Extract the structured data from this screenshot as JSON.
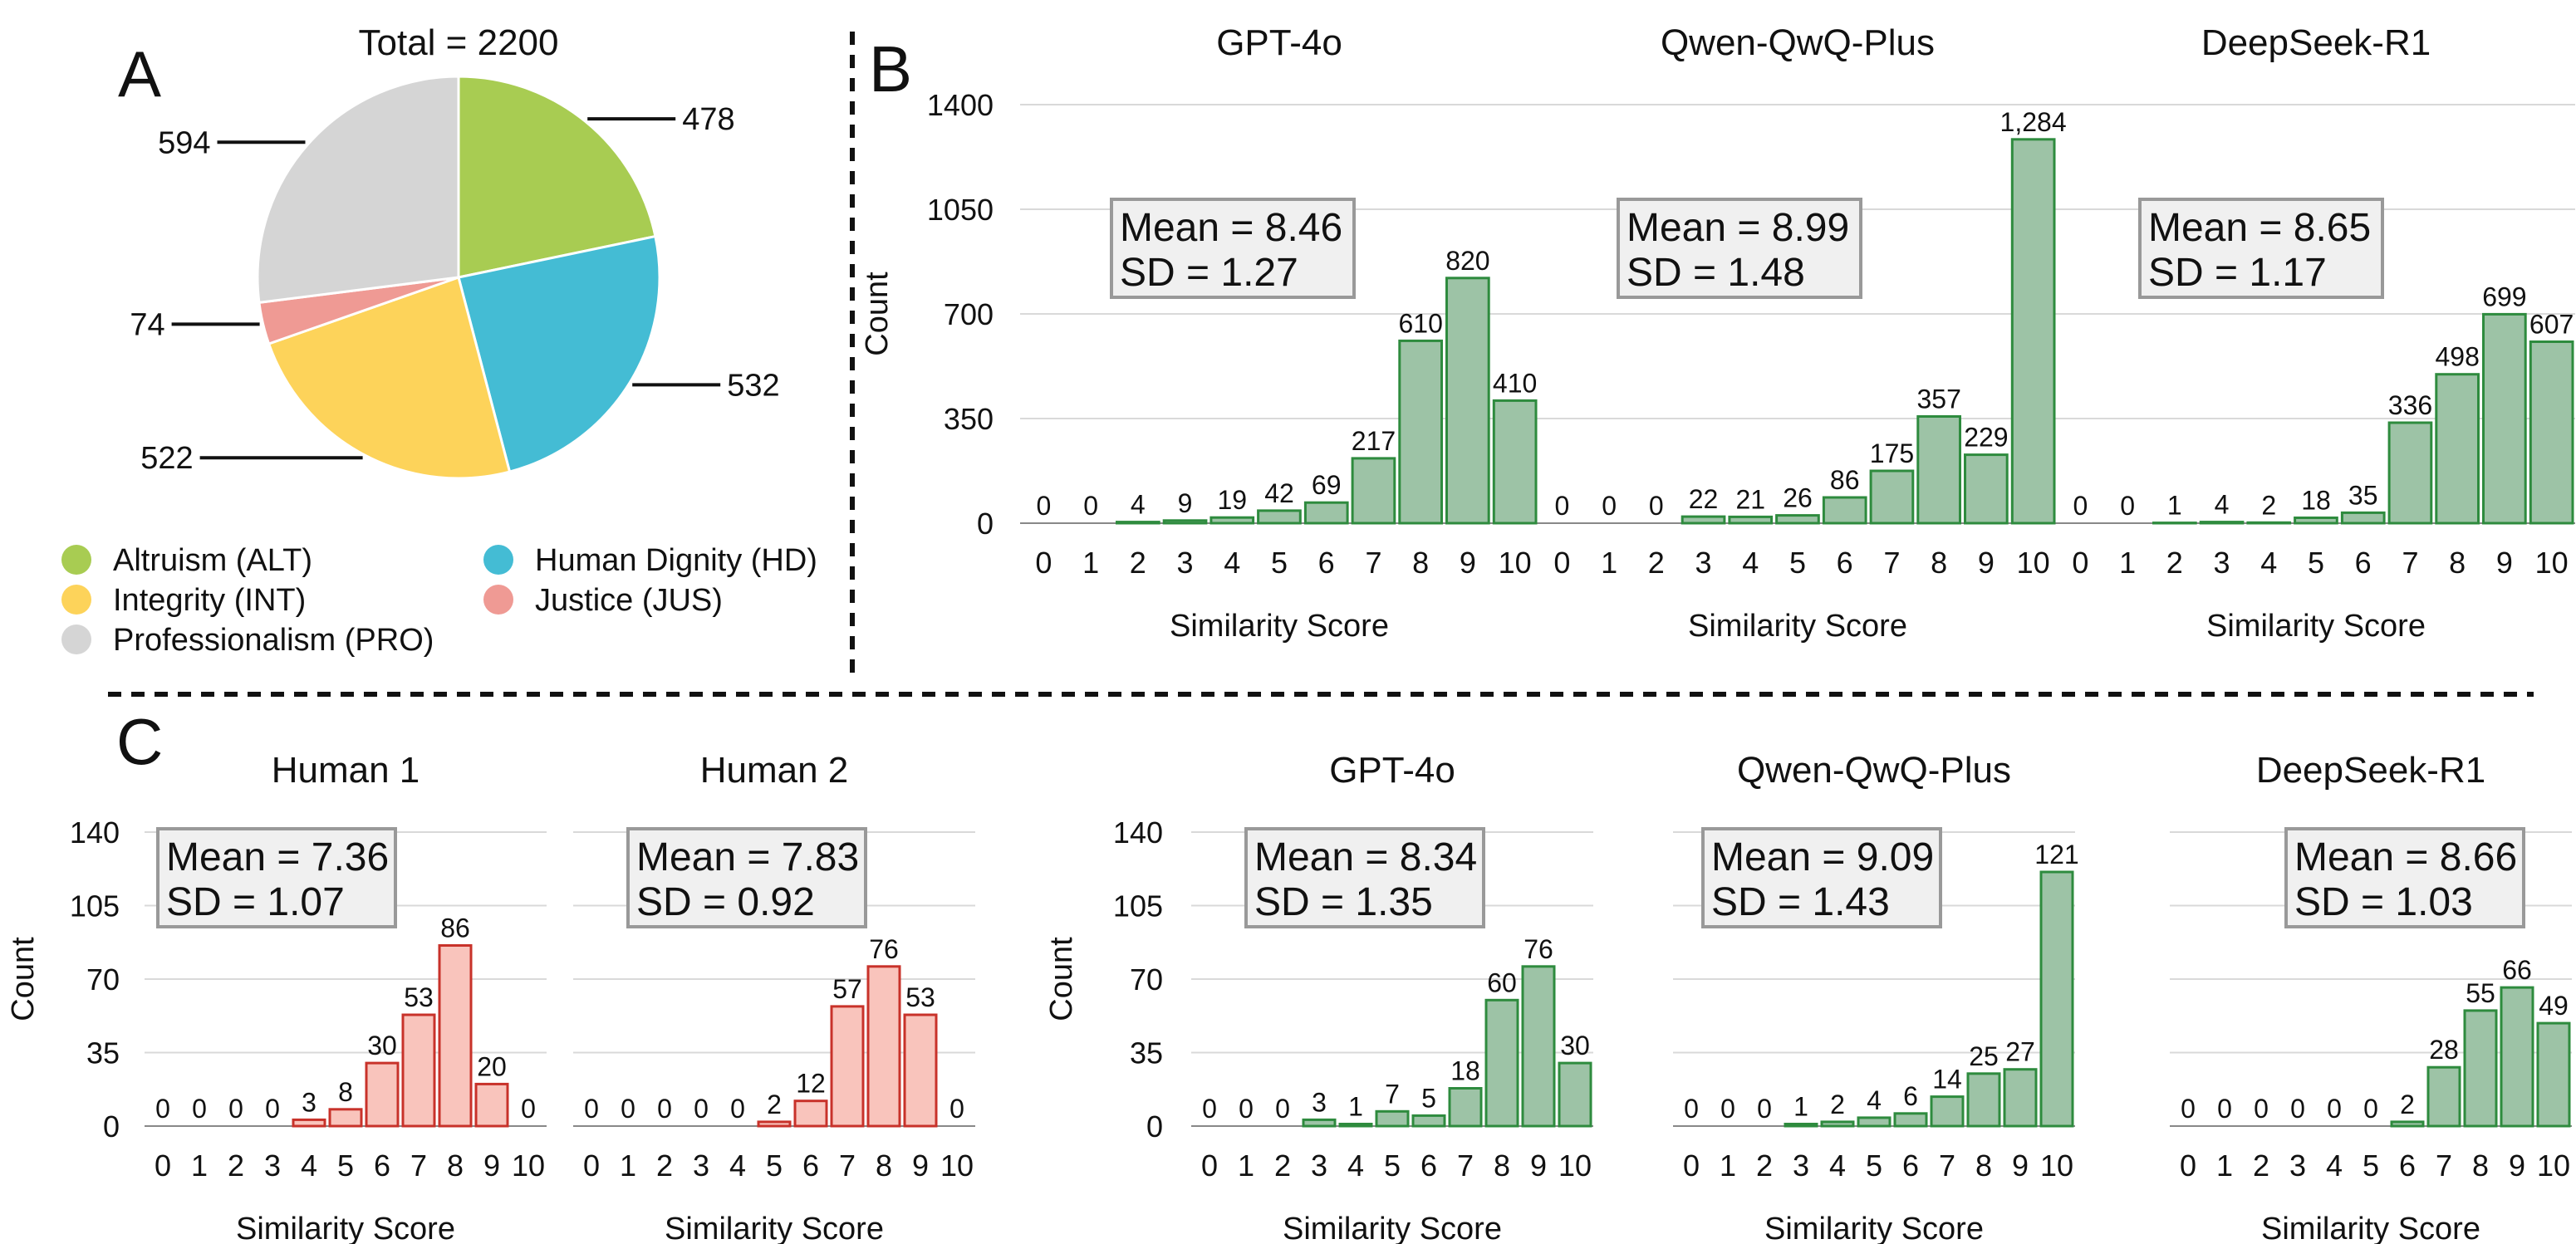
{
  "colors": {
    "green_fill": "#9dc3a6",
    "green_edge": "#2e8b3e",
    "red_fill": "#f9c4bc",
    "red_edge": "#c8322a",
    "stats_box_fill": "#f0f0f0",
    "stats_box_edge": "#999999"
  },
  "panels": {
    "A": "A",
    "B": "B",
    "C": "C"
  },
  "chart_data": [
    {
      "id": "A",
      "type": "pie",
      "title": "Total = 2200",
      "slices": [
        {
          "name": "Altruism (ALT)",
          "value": 478,
          "label": "478",
          "color": "#a8cc52"
        },
        {
          "name": "Human Dignity (HD)",
          "value": 532,
          "label": "532",
          "color": "#44bcd4"
        },
        {
          "name": "Integrity (INT)",
          "value": 522,
          "label": "522",
          "color": "#fdd35a"
        },
        {
          "name": "Justice (JUS)",
          "value": 74,
          "label": "74",
          "color": "#ef9a94"
        },
        {
          "name": "Professionalism (PRO)",
          "value": 594,
          "label": "594",
          "color": "#d5d5d5"
        }
      ],
      "legend": [
        "Altruism (ALT)",
        "Human Dignity (HD)",
        "Integrity (INT)",
        "Justice (JUS)",
        "Professionalism (PRO)"
      ],
      "legend_placement": "bottom"
    },
    {
      "id": "B",
      "type": "bar",
      "ylabel": "Count",
      "xlabel": "Similarity Score",
      "yticks": [
        "0",
        "350",
        "700",
        "1050",
        "1400"
      ],
      "ylim": [
        0,
        1400
      ],
      "categories": [
        "0",
        "1",
        "2",
        "3",
        "4",
        "5",
        "6",
        "7",
        "8",
        "9",
        "10"
      ],
      "grid": true,
      "subplots": [
        {
          "title": "GPT-4o",
          "values": [
            0,
            0,
            4,
            9,
            19,
            42,
            69,
            217,
            610,
            820,
            410
          ],
          "labels": [
            "0",
            "0",
            "4",
            "9",
            "19",
            "42",
            "69",
            "217",
            "610",
            "820",
            "410"
          ],
          "mean": "Mean = 8.46",
          "sd": "SD = 1.27"
        },
        {
          "title": "Qwen-QwQ-Plus",
          "values": [
            0,
            0,
            0,
            22,
            21,
            26,
            86,
            175,
            357,
            229,
            1284
          ],
          "labels": [
            "0",
            "0",
            "0",
            "22",
            "21",
            "26",
            "86",
            "175",
            "357",
            "229",
            "1,284"
          ],
          "mean": "Mean = 8.99",
          "sd": "SD = 1.48"
        },
        {
          "title": "DeepSeek-R1",
          "values": [
            0,
            0,
            1,
            4,
            2,
            18,
            35,
            336,
            498,
            699,
            607
          ],
          "labels": [
            "0",
            "0",
            "1",
            "4",
            "2",
            "18",
            "35",
            "336",
            "498",
            "699",
            "607"
          ],
          "mean": "Mean = 8.65",
          "sd": "SD = 1.17"
        }
      ]
    },
    {
      "id": "C",
      "type": "bar",
      "ylabel": "Count",
      "xlabel": "Similarity Score",
      "yticks": [
        "0",
        "35",
        "70",
        "105",
        "140"
      ],
      "ylim": [
        0,
        140
      ],
      "categories": [
        "0",
        "1",
        "2",
        "3",
        "4",
        "5",
        "6",
        "7",
        "8",
        "9",
        "10"
      ],
      "grid": true,
      "subplots": [
        {
          "title": "Human 1",
          "color": "red",
          "values": [
            0,
            0,
            0,
            0,
            3,
            8,
            30,
            53,
            86,
            20,
            0
          ],
          "labels": [
            "0",
            "0",
            "0",
            "0",
            "3",
            "8",
            "30",
            "53",
            "86",
            "20",
            "0"
          ],
          "mean": "Mean = 7.36",
          "sd": "SD = 1.07"
        },
        {
          "title": "Human 2",
          "color": "red",
          "values": [
            0,
            0,
            0,
            0,
            0,
            2,
            12,
            57,
            76,
            53,
            0
          ],
          "labels": [
            "0",
            "0",
            "0",
            "0",
            "0",
            "2",
            "12",
            "57",
            "76",
            "53",
            "0"
          ],
          "mean": "Mean = 7.83",
          "sd": "SD = 0.92"
        },
        {
          "title": "GPT-4o",
          "color": "green",
          "values": [
            0,
            0,
            0,
            3,
            1,
            7,
            5,
            18,
            60,
            76,
            30
          ],
          "labels": [
            "0",
            "0",
            "0",
            "3",
            "1",
            "7",
            "5",
            "18",
            "60",
            "76",
            "30"
          ],
          "mean": "Mean = 8.34",
          "sd": "SD = 1.35"
        },
        {
          "title": "Qwen-QwQ-Plus",
          "color": "green",
          "values": [
            0,
            0,
            0,
            1,
            2,
            4,
            6,
            14,
            25,
            27,
            121
          ],
          "labels": [
            "0",
            "0",
            "0",
            "1",
            "2",
            "4",
            "6",
            "14",
            "25",
            "27",
            "121"
          ],
          "mean": "Mean = 9.09",
          "sd": "SD = 1.43"
        },
        {
          "title": "DeepSeek-R1",
          "color": "green",
          "values": [
            0,
            0,
            0,
            0,
            0,
            0,
            2,
            28,
            55,
            66,
            49
          ],
          "labels": [
            "0",
            "0",
            "0",
            "0",
            "0",
            "0",
            "2",
            "28",
            "55",
            "66",
            "49"
          ],
          "mean": "Mean = 8.66",
          "sd": "SD = 1.03"
        }
      ]
    }
  ]
}
